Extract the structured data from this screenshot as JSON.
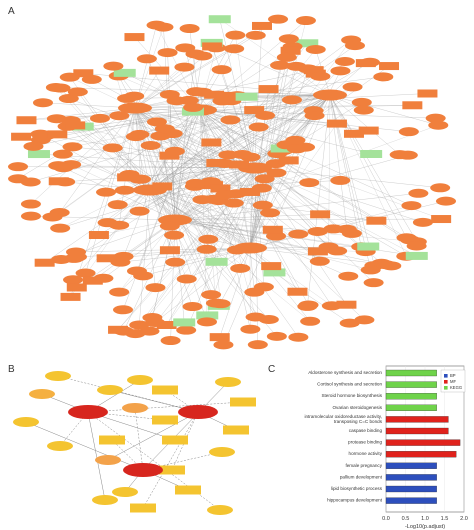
{
  "panels": {
    "a": {
      "letter": "A"
    },
    "b": {
      "letter": "B"
    },
    "c": {
      "letter": "C"
    }
  },
  "colors": {
    "orange_node": "#f07f3c",
    "green_node": "#a4e29a",
    "edge": "#999999",
    "hub_red": "#d7261e",
    "node_orange_light": "#f3a24a",
    "node_yellow": "#f4c430",
    "bar_green": "#6fd34a",
    "bar_red": "#e0221c",
    "bar_blue": "#2d4fbd"
  },
  "chart_data": {
    "type": "bar",
    "orientation": "horizontal",
    "categories": [
      "Aldosterone synthesis and secretion",
      "Cortisol synthesis and secretion",
      "Steroid hormone biosynthesis",
      "Ovarian steroidogenesis",
      "intramolecular oxidoreductase activity, transposing C=C bonds",
      "caspase binding",
      "protease binding",
      "hormone activity",
      "female pregnancy",
      "pallium development",
      "lipid biosynthetic process",
      "hippocampus development"
    ],
    "values": [
      1.3,
      1.3,
      1.3,
      1.3,
      1.6,
      1.6,
      1.9,
      1.8,
      1.3,
      1.3,
      1.3,
      1.3
    ],
    "groups": [
      "KEGG",
      "KEGG",
      "KEGG",
      "KEGG",
      "MF",
      "MF",
      "MF",
      "MF",
      "BP",
      "BP",
      "BP",
      "BP"
    ],
    "xlabel": "-Log10(p.adjust)",
    "xlim": [
      0,
      2.0
    ],
    "xticks": [
      "0.0",
      "0.5",
      "1.0",
      "1.5",
      "2.0"
    ],
    "legend": [
      {
        "name": "BP",
        "color": "#2d4fbd"
      },
      {
        "name": "MF",
        "color": "#e0221c"
      },
      {
        "name": "KEGG",
        "color": "#6fd34a"
      }
    ],
    "legend_position": "top-right"
  }
}
